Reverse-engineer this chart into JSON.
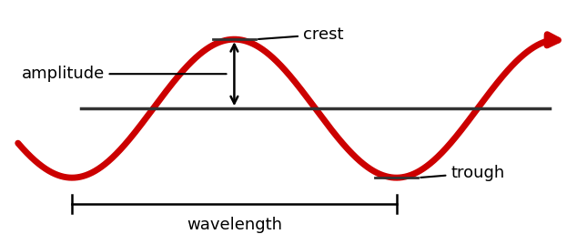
{
  "background_color": "#ffffff",
  "wave_color": "#cc0000",
  "wave_linewidth": 5,
  "equilibrium_color": "#333333",
  "equilibrium_linewidth": 2.5,
  "annotation_color": "#000000",
  "amplitude": 1.0,
  "wave_x_start": -0.3,
  "wave_x_end": 2.75,
  "equilibrium_x_start": 0.05,
  "equilibrium_x_end": 2.65,
  "period": 1.8,
  "phase_shift": 0.45,
  "figsize": [
    6.45,
    2.57
  ],
  "dpi": 100,
  "xlim": [
    -0.35,
    2.85
  ],
  "ylim": [
    -1.55,
    1.55
  ],
  "labels": {
    "crest": "crest",
    "trough": "trough",
    "amplitude": "amplitude",
    "wavelength": "wavelength"
  },
  "label_fontsize": 13,
  "arrow_color": "#000000"
}
